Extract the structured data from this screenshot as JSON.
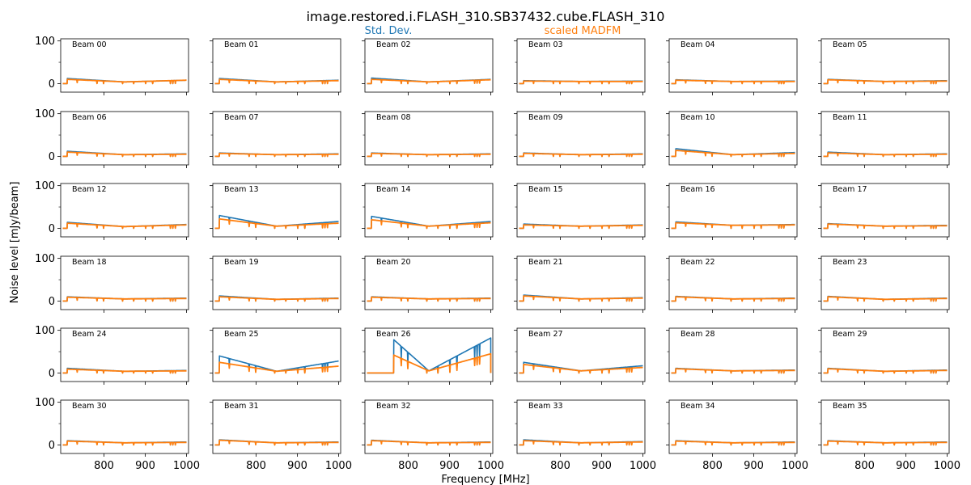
{
  "figure": {
    "title": "image.restored.i.FLASH_310.SB37432.cube.FLASH_310",
    "xlabel": "Frequency [MHz]",
    "ylabel": "Noise level [mJy/beam]"
  },
  "colors": {
    "std": "#1f77b4",
    "madfm": "#ff7f0e",
    "axes": "#000000"
  },
  "chart_data": {
    "type": "line",
    "title": "image.restored.i.FLASH_310.SB37432.cube.FLASH_310",
    "xlabel": "Frequency [MHz]",
    "ylabel": "Noise level [mJy/beam]",
    "xlim": [
      695,
      1005
    ],
    "ylim": [
      -20,
      105
    ],
    "xticks": [
      800,
      900,
      1000
    ],
    "yticks": [
      0,
      100
    ],
    "grid": false,
    "legend": {
      "placement": "top-center",
      "entries": [
        "Std. Dev.",
        "scaled MADFM"
      ]
    },
    "series_names": [
      "Std. Dev.",
      "scaled MADFM"
    ],
    "panels": [
      {
        "beam": "Beam 00",
        "start": 711,
        "end": 1000,
        "std": [
          12,
          4,
          8
        ],
        "madfm": [
          10,
          4,
          8
        ]
      },
      {
        "beam": "Beam 01",
        "start": 711,
        "end": 1000,
        "std": [
          12,
          4,
          8
        ],
        "madfm": [
          10,
          4,
          7
        ]
      },
      {
        "beam": "Beam 02",
        "start": 711,
        "end": 1000,
        "std": [
          13,
          4,
          10
        ],
        "madfm": [
          10,
          4,
          9
        ]
      },
      {
        "beam": "Beam 03",
        "start": 711,
        "end": 1000,
        "std": [
          7,
          5,
          6
        ],
        "madfm": [
          6,
          5,
          5
        ]
      },
      {
        "beam": "Beam 04",
        "start": 711,
        "end": 1000,
        "std": [
          9,
          5,
          6
        ],
        "madfm": [
          8,
          5,
          5
        ]
      },
      {
        "beam": "Beam 05",
        "start": 711,
        "end": 1000,
        "std": [
          10,
          5,
          7
        ],
        "madfm": [
          9,
          5,
          6
        ]
      },
      {
        "beam": "Beam 06",
        "start": 711,
        "end": 1000,
        "std": [
          12,
          4,
          6
        ],
        "madfm": [
          10,
          4,
          5
        ]
      },
      {
        "beam": "Beam 07",
        "start": 711,
        "end": 1000,
        "std": [
          8,
          4,
          6
        ],
        "madfm": [
          7,
          4,
          5
        ]
      },
      {
        "beam": "Beam 08",
        "start": 711,
        "end": 1000,
        "std": [
          8,
          4,
          6
        ],
        "madfm": [
          7,
          4,
          5
        ]
      },
      {
        "beam": "Beam 09",
        "start": 711,
        "end": 1000,
        "std": [
          8,
          4,
          6
        ],
        "madfm": [
          7,
          4,
          5
        ]
      },
      {
        "beam": "Beam 10",
        "start": 711,
        "end": 1000,
        "std": [
          18,
          4,
          9
        ],
        "madfm": [
          14,
          4,
          7
        ]
      },
      {
        "beam": "Beam 11",
        "start": 711,
        "end": 1000,
        "std": [
          10,
          4,
          6
        ],
        "madfm": [
          8,
          4,
          5
        ]
      },
      {
        "beam": "Beam 12",
        "start": 711,
        "end": 1000,
        "std": [
          14,
          4,
          9
        ],
        "madfm": [
          12,
          4,
          8
        ]
      },
      {
        "beam": "Beam 13",
        "start": 711,
        "end": 1000,
        "std": [
          30,
          5,
          16
        ],
        "madfm": [
          22,
          5,
          12
        ]
      },
      {
        "beam": "Beam 14",
        "start": 711,
        "end": 1000,
        "std": [
          28,
          5,
          16
        ],
        "madfm": [
          20,
          5,
          13
        ]
      },
      {
        "beam": "Beam 15",
        "start": 711,
        "end": 1000,
        "std": [
          10,
          5,
          8
        ],
        "madfm": [
          8,
          5,
          7
        ]
      },
      {
        "beam": "Beam 16",
        "start": 711,
        "end": 1000,
        "std": [
          15,
          7,
          9
        ],
        "madfm": [
          13,
          7,
          8
        ]
      },
      {
        "beam": "Beam 17",
        "start": 711,
        "end": 1000,
        "std": [
          11,
          5,
          7
        ],
        "madfm": [
          10,
          5,
          6
        ]
      },
      {
        "beam": "Beam 18",
        "start": 711,
        "end": 1000,
        "std": [
          10,
          5,
          7
        ],
        "madfm": [
          9,
          5,
          6
        ]
      },
      {
        "beam": "Beam 19",
        "start": 711,
        "end": 1000,
        "std": [
          12,
          4,
          7
        ],
        "madfm": [
          10,
          4,
          6
        ]
      },
      {
        "beam": "Beam 20",
        "start": 711,
        "end": 1000,
        "std": [
          10,
          5,
          7
        ],
        "madfm": [
          9,
          5,
          6
        ]
      },
      {
        "beam": "Beam 21",
        "start": 711,
        "end": 1000,
        "std": [
          14,
          5,
          8
        ],
        "madfm": [
          12,
          5,
          7
        ]
      },
      {
        "beam": "Beam 22",
        "start": 711,
        "end": 1000,
        "std": [
          11,
          5,
          7
        ],
        "madfm": [
          10,
          5,
          6
        ]
      },
      {
        "beam": "Beam 23",
        "start": 711,
        "end": 1000,
        "std": [
          11,
          4,
          7
        ],
        "madfm": [
          10,
          4,
          6
        ]
      },
      {
        "beam": "Beam 24",
        "start": 711,
        "end": 1000,
        "std": [
          11,
          4,
          6
        ],
        "madfm": [
          9,
          4,
          5
        ]
      },
      {
        "beam": "Beam 25",
        "start": 711,
        "end": 1000,
        "std": [
          40,
          4,
          28
        ],
        "madfm": [
          25,
          4,
          16
        ]
      },
      {
        "beam": "Beam 26",
        "start": 765,
        "end": 1000,
        "std": [
          78,
          5,
          82
        ],
        "madfm": [
          42,
          5,
          45
        ]
      },
      {
        "beam": "Beam 27",
        "start": 711,
        "end": 1000,
        "std": [
          25,
          5,
          17
        ],
        "madfm": [
          20,
          5,
          13
        ]
      },
      {
        "beam": "Beam 28",
        "start": 711,
        "end": 1000,
        "std": [
          11,
          5,
          7
        ],
        "madfm": [
          10,
          5,
          6
        ]
      },
      {
        "beam": "Beam 29",
        "start": 711,
        "end": 1000,
        "std": [
          11,
          4,
          7
        ],
        "madfm": [
          10,
          4,
          6
        ]
      },
      {
        "beam": "Beam 30",
        "start": 711,
        "end": 1000,
        "std": [
          10,
          5,
          7
        ],
        "madfm": [
          9,
          5,
          6
        ]
      },
      {
        "beam": "Beam 31",
        "start": 711,
        "end": 1000,
        "std": [
          12,
          5,
          7
        ],
        "madfm": [
          11,
          5,
          6
        ]
      },
      {
        "beam": "Beam 32",
        "start": 711,
        "end": 1000,
        "std": [
          11,
          5,
          7
        ],
        "madfm": [
          10,
          5,
          6
        ]
      },
      {
        "beam": "Beam 33",
        "start": 711,
        "end": 1000,
        "std": [
          12,
          5,
          8
        ],
        "madfm": [
          10,
          5,
          7
        ]
      },
      {
        "beam": "Beam 34",
        "start": 711,
        "end": 1000,
        "std": [
          10,
          5,
          7
        ],
        "madfm": [
          9,
          5,
          6
        ]
      },
      {
        "beam": "Beam 35",
        "start": 711,
        "end": 1000,
        "std": [
          10,
          5,
          7
        ],
        "madfm": [
          9,
          5,
          6
        ]
      }
    ],
    "dip_frequencies": [
      735,
      783,
      799,
      845,
      872,
      901,
      918,
      961,
      967,
      973
    ],
    "min_frequency": 850,
    "baseline_start": 700
  }
}
